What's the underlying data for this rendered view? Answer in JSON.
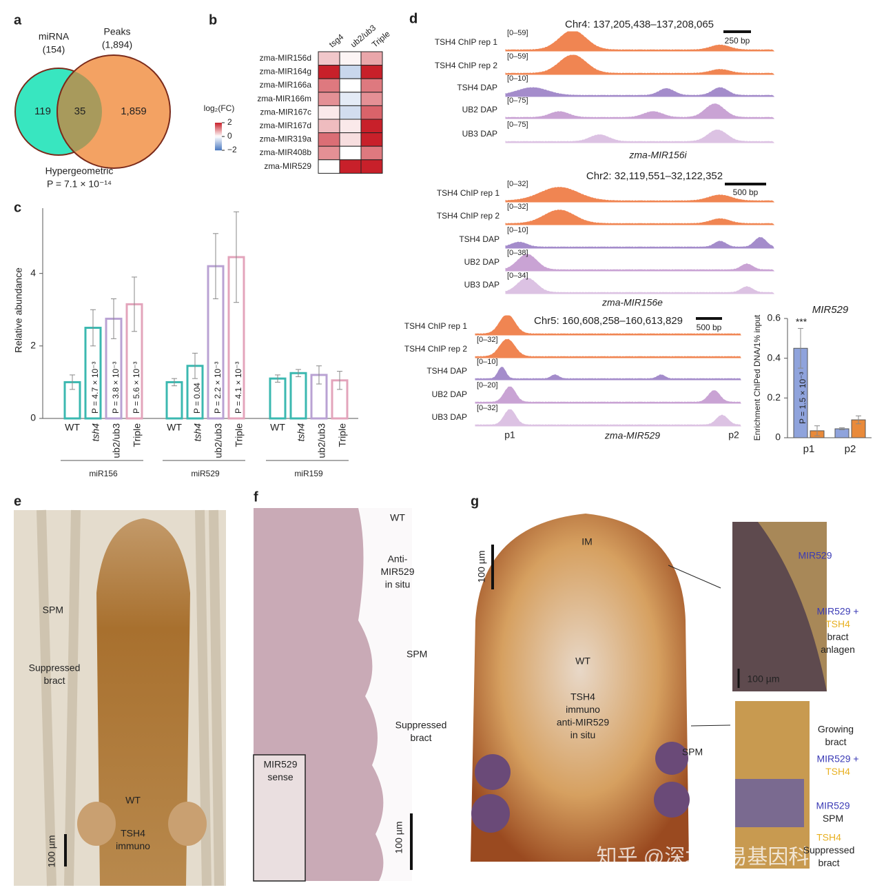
{
  "chart_data": [
    {
      "type": "venn",
      "panel": "a",
      "sets": [
        {
          "name": "miRNA",
          "count": {
            "value": 154,
            "label": "(154)"
          },
          "color": "#38e6c0"
        },
        {
          "name": "Peaks",
          "count": {
            "value": 1894,
            "label": "(1,894)"
          },
          "color": "#f3a263"
        }
      ],
      "regions": [
        119,
        35,
        {
          "value": 1859,
          "label": "1,859"
        }
      ],
      "overlap_color": "#a89a5c",
      "test": "Hypergeometric",
      "p_label": "P = 7.1 × 10⁻¹⁴"
    },
    {
      "type": "heatmap",
      "panel": "b",
      "rows": [
        "zma-MIR156d",
        "zma-MIR164g",
        "zma-MIR166a",
        "zma-MIR166m",
        "zma-MIR167c",
        "zma-MIR167d",
        "zma-MIR319a",
        "zma-MIR408b",
        "zma-MIR529"
      ],
      "columns": [
        "tsg4",
        "ub2/ub3",
        "Triple"
      ],
      "values": [
        [
          0.5,
          0.1,
          0.8
        ],
        [
          2,
          -0.6,
          2
        ],
        [
          1.2,
          0,
          1.2
        ],
        [
          1,
          -0.3,
          1
        ],
        [
          0.2,
          -0.5,
          1.4
        ],
        [
          0.6,
          0.2,
          2
        ],
        [
          1.3,
          0.3,
          2
        ],
        [
          1,
          0,
          1.2
        ],
        [
          0,
          2,
          2
        ]
      ],
      "colorbar_label": "log₂(FC)",
      "clim": [
        -2,
        2
      ],
      "cticks": [
        2,
        0,
        {
          "value": -2,
          "label": "−2"
        }
      ],
      "colors": {
        "high": "#c8202a",
        "mid": "#ffffff",
        "low": "#4a78c0"
      }
    },
    {
      "type": "bar",
      "panel": "c",
      "y_label": "Relative abundance",
      "categories": [
        "miR156",
        "miR529",
        "miR159"
      ],
      "series": [
        {
          "name": "WT",
          "color": "#3bb8b0",
          "values": [
            1.0,
            1.0,
            1.1
          ],
          "errors": [
            0.2,
            0.1,
            0.1
          ],
          "p_labels": [
            null,
            null,
            null
          ]
        },
        {
          "name": "tsh4",
          "color": "#3bb8b0",
          "values": [
            2.5,
            1.45,
            1.25
          ],
          "errors": [
            0.5,
            0.35,
            0.1
          ],
          "p_labels": [
            "P = 4.7 × 10⁻³",
            "P = 0.04",
            null
          ]
        },
        {
          "name": "ub2/ub3",
          "color": "#b9a2d3",
          "values": [
            2.75,
            4.2,
            1.2
          ],
          "errors": [
            0.55,
            0.9,
            0.25
          ],
          "p_labels": [
            "P = 3.8 × 10⁻³",
            "P = 2.2 × 10⁻³",
            null
          ]
        },
        {
          "name": "Triple",
          "color": "#e3a4bb",
          "values": [
            3.15,
            4.45,
            1.05
          ],
          "errors": [
            0.75,
            1.25,
            0.25
          ],
          "p_labels": [
            "P = 5.6 × 10⁻³",
            "P = 4.1 × 10⁻³",
            null
          ]
        }
      ],
      "ylim": [
        0,
        5.8
      ],
      "yticks": [
        0,
        2,
        4
      ]
    },
    {
      "type": "bar",
      "panel": "d",
      "title": "MIR529",
      "y_label": "Enrichment ChIPed DNA/1% input",
      "categories": [
        "p1",
        "p2"
      ],
      "series": [
        {
          "color": "#8fa3dc",
          "values": [
            0.45,
            0.045
          ],
          "errors": [
            0.1,
            0.005
          ]
        },
        {
          "color": "#e98a3a",
          "values": [
            0.035,
            0.09
          ],
          "errors": [
            0.025,
            0.02
          ]
        }
      ],
      "annotation": "***",
      "p_label": "P = 1.5 × 10⁻³",
      "ylim": [
        0,
        0.6
      ],
      "yticks": [
        0,
        0.2,
        0.4,
        0.6
      ]
    }
  ],
  "tracks": {
    "letter": "d",
    "loci": [
      {
        "title": "Chr4: 137,205,438–137,208,065",
        "scale_label": "250 bp",
        "gene": "zma-MIR156i",
        "tracks": [
          {
            "name": "TSH4 ChIP rep 1",
            "range": "[0–59]",
            "color": "#f08552"
          },
          {
            "name": "TSH4 ChIP rep 2",
            "range": "[0–59]",
            "color": "#f08552"
          },
          {
            "name": "TSH4 DAP",
            "range": "[0–10]",
            "color": "#a48ccb"
          },
          {
            "name": "UB2 DAP",
            "range": "[0–75]",
            "color": "#c9a3d4"
          },
          {
            "name": "UB3 DAP",
            "range": "[0–75]",
            "color": "#dcc2e3"
          }
        ]
      },
      {
        "title": "Chr2: 32,119,551–32,122,352",
        "scale_label": "500 bp",
        "gene": "zma-MIR156e",
        "tracks": [
          {
            "name": "TSH4 ChIP rep 1",
            "range": "[0–32]",
            "color": "#f08552"
          },
          {
            "name": "TSH4 ChIP rep 2",
            "range": "[0–32]",
            "color": "#f08552"
          },
          {
            "name": "TSH4 DAP",
            "range": "[0–10]",
            "color": "#a48ccb"
          },
          {
            "name": "UB2 DAP",
            "range": "[0–38]",
            "color": "#c9a3d4"
          },
          {
            "name": "UB3 DAP",
            "range": "[0–34]",
            "color": "#dcc2e3"
          }
        ]
      },
      {
        "title": "Chr5: 160,608,258–160,613,829",
        "scale_label": "500 bp",
        "gene": "zma-MIR529",
        "sites": [
          "p1",
          "p2"
        ],
        "tracks": [
          {
            "name": "TSH4 ChIP rep 1",
            "range": "",
            "color": "#f08552"
          },
          {
            "name": "TSH4 ChIP rep 2",
            "range": "[0–32]",
            "color": "#f08552"
          },
          {
            "name": "TSH4 DAP",
            "range": "[0–10]",
            "color": "#a48ccb"
          },
          {
            "name": "UB2 DAP",
            "range": "[0–20]",
            "color": "#c9a3d4"
          },
          {
            "name": "UB3 DAP",
            "range": "[0–32]",
            "color": "#dcc2e3"
          }
        ]
      }
    ]
  },
  "images": [
    {
      "letter": "e",
      "labels": [
        [
          "SPM"
        ],
        [
          "Suppressed",
          "bract"
        ],
        [
          "WT"
        ],
        [
          "TSH4",
          "immuno"
        ],
        [
          "100 µm"
        ]
      ]
    },
    {
      "letter": "f",
      "labels": [
        [
          "WT"
        ],
        [
          "Anti-",
          "MIR529",
          "in situ"
        ],
        [
          "SPM"
        ],
        [
          "Suppressed",
          "bract"
        ],
        [
          "MIR529",
          "sense"
        ],
        [
          "100 µm"
        ]
      ]
    },
    {
      "letter": "g",
      "label_colors": {
        "mir": "#3a3ab5",
        "tsh4": "#e8b020"
      },
      "labels": [
        [
          "IM"
        ],
        [
          "WT"
        ],
        [
          "TSH4",
          "immuno",
          "anti-MIR529",
          "in situ"
        ],
        [
          "SPM"
        ],
        [
          "100 µm"
        ],
        [
          "MIR529"
        ],
        [
          "MIR529 +",
          "TSH4",
          "bract",
          "anlagen"
        ],
        [
          "100 µm"
        ],
        [
          "Growing",
          "bract"
        ],
        [
          "MIR529 +",
          "TSH4"
        ],
        [
          "MIR529",
          "SPM"
        ],
        [
          "TSH4",
          "Suppressed",
          "bract"
        ]
      ]
    }
  ],
  "watermark": "知乎 @深圳市易基因科技"
}
